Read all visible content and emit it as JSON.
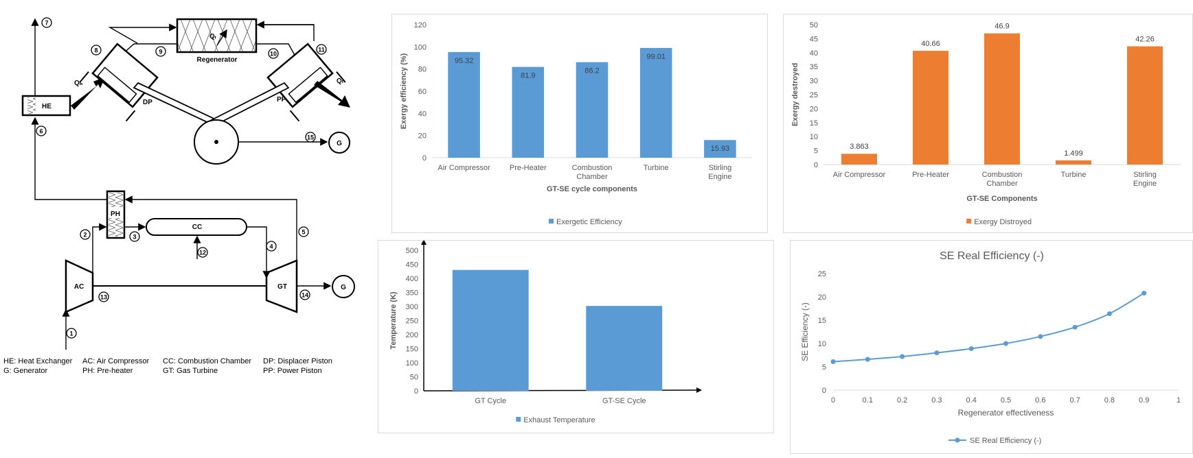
{
  "diagram": {
    "labels": {
      "he": "HE",
      "ph": "PH",
      "cc": "CC",
      "ac": "AC",
      "gt": "GT",
      "gen1": "G",
      "gen2": "G",
      "regenerator": "Regenerator",
      "dp": "DP",
      "pp": "PP",
      "qh": "Qₕ",
      "qr": "Qᵣ",
      "ql": "Qₗ"
    },
    "states": [
      "1",
      "2",
      "3",
      "4",
      "5",
      "6",
      "7",
      "8",
      "9",
      "10",
      "11",
      "12",
      "13",
      "14",
      "15"
    ],
    "legend": [
      [
        "HE: Heat Exchanger",
        "G: Generator"
      ],
      [
        "AC: Air Compressor",
        "PH: Pre-heater"
      ],
      [
        "CC: Combustion Chamber",
        "GT: Gas Turbine"
      ],
      [
        "DP: Displacer Piston",
        "PP: Power Piston"
      ]
    ]
  },
  "chart_data": [
    {
      "type": "bar",
      "categories": [
        "Air Compressor",
        "Pre-Heater",
        "Combustion Chamber",
        "Turbine",
        "Stirling Engine"
      ],
      "values": [
        95.32,
        81.9,
        86.2,
        99.01,
        15.93
      ],
      "data_labels": [
        "95.32",
        "81.9",
        "86.2",
        "99.01",
        "15.93"
      ],
      "xlabel": "GT-SE cycle components",
      "ylabel": "Exergy efficiency (%)",
      "ylim": [
        0,
        120
      ],
      "yticks": [
        "0",
        "20",
        "40",
        "60",
        "80",
        "100",
        "120"
      ],
      "legend": "Exergetic Efficiency",
      "legend_position": "bottom",
      "color": "#5b9bd5",
      "grid": false
    },
    {
      "type": "bar",
      "categories": [
        "Air Compressor",
        "Pre-Heater",
        "Combustion Chamber",
        "Turbine",
        "Stirling Engine"
      ],
      "values": [
        3.863,
        40.66,
        46.9,
        1.499,
        42.26
      ],
      "data_labels": [
        "3.863",
        "40.66",
        "46.9",
        "1.499",
        "42.26"
      ],
      "xlabel": "GT-SE Components",
      "ylabel": "Exergy destroyed",
      "ylim": [
        0,
        50
      ],
      "yticks": [
        "0",
        "5",
        "10",
        "15",
        "20",
        "25",
        "30",
        "35",
        "40",
        "45",
        "50"
      ],
      "legend": "Exergy Distroyed",
      "legend_position": "bottom",
      "color": "#ed7d31",
      "grid": false
    },
    {
      "type": "bar",
      "categories": [
        "GT Cycle",
        "GT-SE Cycle"
      ],
      "values": [
        430,
        302
      ],
      "ylabel": "Temperature (K)",
      "ylim": [
        0,
        500
      ],
      "yticks": [
        "0",
        "50",
        "100",
        "150",
        "200",
        "250",
        "300",
        "350",
        "400",
        "450",
        "500"
      ],
      "legend": "Exhaust Temperature",
      "legend_position": "bottom",
      "color": "#5b9bd5",
      "grid": false
    },
    {
      "type": "line",
      "title": "SE Real Efficiency (-)",
      "x": [
        0,
        0.1,
        0.2,
        0.3,
        0.4,
        0.5,
        0.6,
        0.7,
        0.8,
        0.9
      ],
      "series": [
        {
          "name": "SE Real Efficiency (-)",
          "values": [
            6.1,
            6.6,
            7.2,
            8.0,
            8.9,
            10.0,
            11.5,
            13.5,
            16.4,
            20.8
          ]
        }
      ],
      "xlabel": "Regenerator effectiveness",
      "ylabel": "SE Efficiency (-)",
      "xlim": [
        0,
        1
      ],
      "ylim": [
        0,
        25
      ],
      "xticks": [
        "0",
        "0.1",
        "0.2",
        "0.3",
        "0.4",
        "0.5",
        "0.6",
        "0.7",
        "0.8",
        "0.9",
        "1"
      ],
      "yticks": [
        "0",
        "5",
        "10",
        "15",
        "20",
        "25"
      ],
      "legend_position": "bottom",
      "color": "#5b9bd5",
      "grid": false
    }
  ]
}
